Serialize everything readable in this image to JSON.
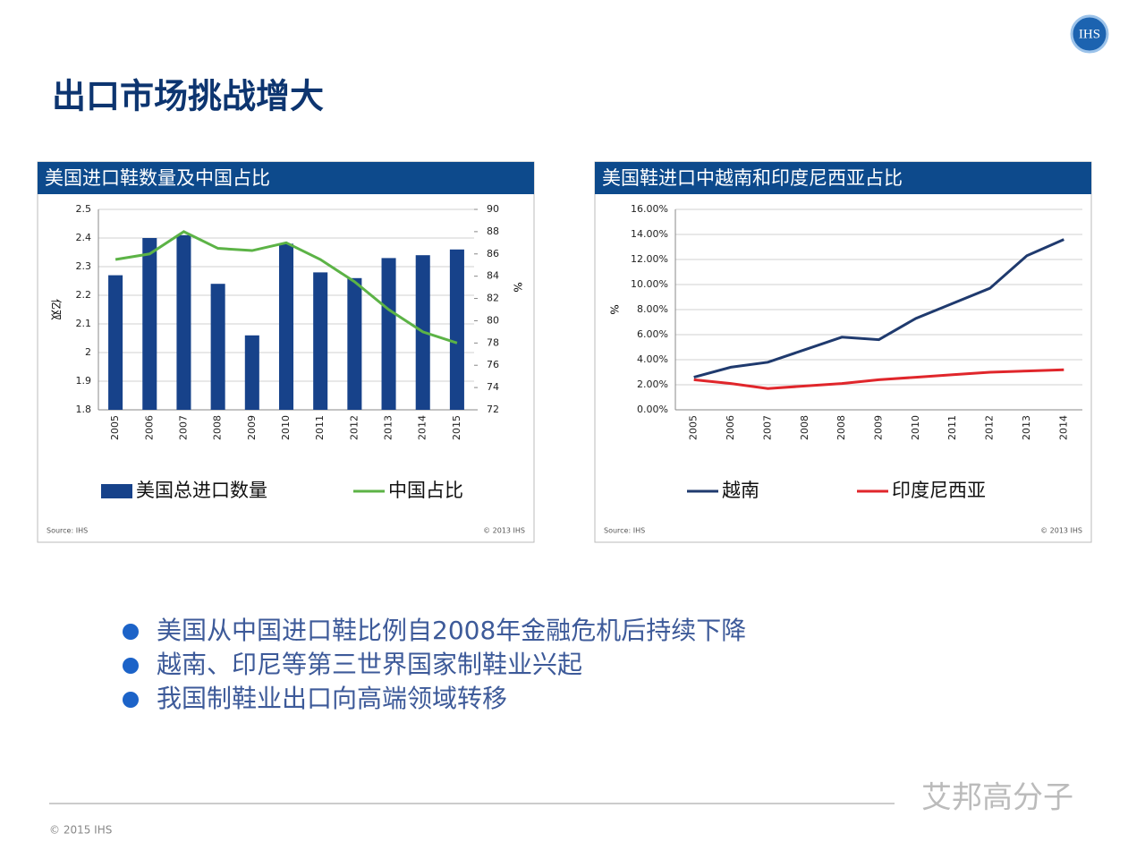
{
  "slide": {
    "logo": "IHS",
    "title": "出口市场挑战增大",
    "bullets": [
      "美国从中国进口鞋比例自2008年金融危机后持续下降",
      "越南、印尼等第三世界国家制鞋业兴起",
      "我国制鞋业出口向高端领域转移"
    ],
    "footer": "© 2015 IHS",
    "watermark": "艾邦高分子"
  },
  "chart_data": [
    {
      "type": "bar",
      "title": "美国进口鞋数量及中国占比",
      "categories": [
        "2005",
        "2006",
        "2007",
        "2008",
        "2009",
        "2010",
        "2011",
        "2012",
        "2013",
        "2014",
        "2015"
      ],
      "series": [
        {
          "name": "美国总进口数量",
          "type": "bar",
          "color": "#17428a",
          "values": [
            2.27,
            2.4,
            2.41,
            2.24,
            2.06,
            2.38,
            2.28,
            2.26,
            2.33,
            2.34,
            2.36
          ]
        },
        {
          "name": "中国占比",
          "type": "line",
          "axis": "y2",
          "color": "#5cb346",
          "values": [
            85.5,
            86,
            88,
            86.5,
            86.3,
            87,
            85.5,
            83.5,
            81,
            79,
            78
          ]
        }
      ],
      "y_label": "亿双",
      "y2_label": "%",
      "ylim": [
        1.8,
        2.5
      ],
      "yticks": [
        1.8,
        1.9,
        2,
        2.1,
        2.2,
        2.3,
        2.4,
        2.5
      ],
      "y2lim": [
        72,
        90
      ],
      "y2ticks": [
        72,
        74,
        76,
        78,
        80,
        82,
        84,
        86,
        88,
        90
      ],
      "grid": true,
      "source": "Source: IHS",
      "copyright": "© 2013 IHS"
    },
    {
      "type": "line",
      "title": "美国鞋进口中越南和印度尼西亚占比",
      "categories": [
        "2005",
        "2006",
        "2007",
        "2008",
        "2008",
        "2009",
        "2010",
        "2011",
        "2012",
        "2013",
        "2014"
      ],
      "series": [
        {
          "name": "越南",
          "color": "#1f3a6e",
          "values": [
            2.6,
            3.4,
            3.8,
            4.8,
            5.8,
            5.6,
            7.3,
            8.5,
            9.7,
            12.3,
            13.6
          ]
        },
        {
          "name": "印度尼西亚",
          "color": "#e0262b",
          "values": [
            2.4,
            2.1,
            1.7,
            1.9,
            2.1,
            2.4,
            2.6,
            2.8,
            3.0,
            3.1,
            3.2
          ]
        }
      ],
      "y_label": "%",
      "ylim": [
        0,
        16
      ],
      "yticks": [
        {
          "value": 0,
          "label": "0.00%"
        },
        {
          "value": 2,
          "label": "2.00%"
        },
        {
          "value": 4,
          "label": "4.00%"
        },
        {
          "value": 6,
          "label": "6.00%"
        },
        {
          "value": 8,
          "label": "8.00%"
        },
        {
          "value": 10,
          "label": "10.00%"
        },
        {
          "value": 12,
          "label": "12.00%"
        },
        {
          "value": 14,
          "label": "14.00%"
        },
        {
          "value": 16,
          "label": "16.00%"
        }
      ],
      "grid": true,
      "source": "Source: IHS",
      "copyright": "© 2013 IHS"
    }
  ]
}
